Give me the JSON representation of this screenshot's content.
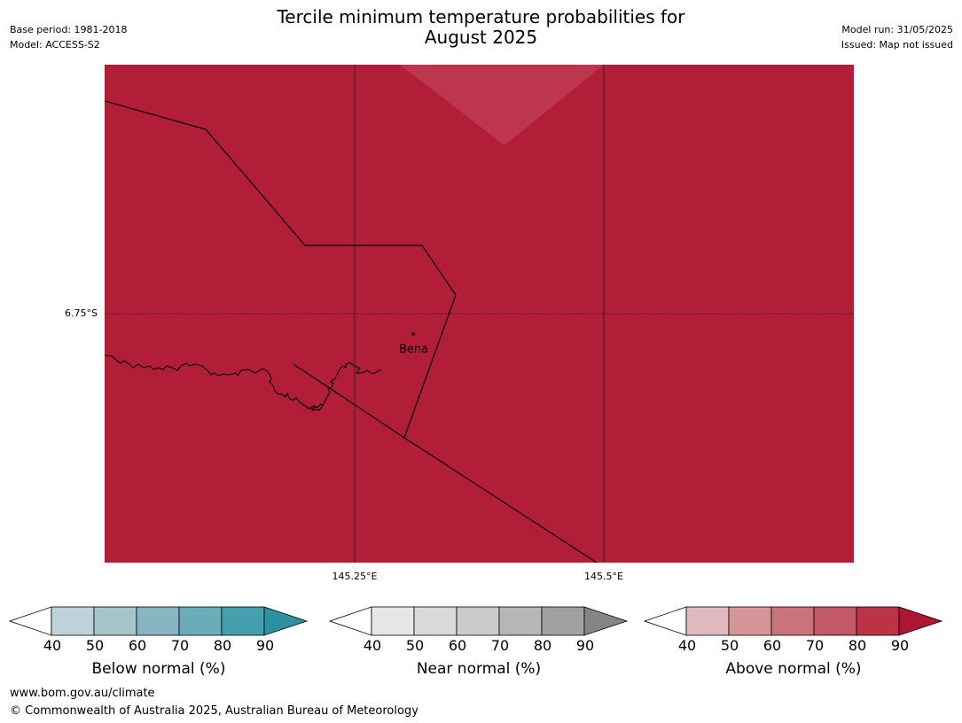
{
  "title_line1": "Tercile minimum temperature probabilities for",
  "title_line2": "August 2025",
  "base_period": "Base period: 1981-2018",
  "model": "Model: ACCESS-S2",
  "model_run": "Model run: 31/05/2025",
  "issued": "Issued: Map not issued",
  "map": {
    "lat_label": "6.75°S",
    "lon_labels": [
      "145.25°E",
      "145.5°E"
    ],
    "place": "Bena",
    "fill_color": "#b21e38",
    "light_patch_color": "#bd364d"
  },
  "legends": [
    {
      "label": "Below normal (%)",
      "ticks": [
        "40",
        "50",
        "60",
        "70",
        "80",
        "90"
      ],
      "colors": [
        "#ffffff",
        "#bed3d9",
        "#a6c4ca",
        "#89b5c1",
        "#6aacba",
        "#44a0ae",
        "#2b919f"
      ]
    },
    {
      "label": "Near normal (%)",
      "ticks": [
        "40",
        "50",
        "60",
        "70",
        "80",
        "90"
      ],
      "colors": [
        "#ffffff",
        "#e6e6e6",
        "#d9d9d9",
        "#cbcbcb",
        "#b6b6b6",
        "#a1a1a1",
        "#858585"
      ]
    },
    {
      "label": "Above normal (%)",
      "ticks": [
        "40",
        "50",
        "60",
        "70",
        "80",
        "90"
      ],
      "colors": [
        "#ffffff",
        "#e1b8bd",
        "#d59599",
        "#ca737b",
        "#c35866",
        "#bc3348",
        "#ad1733"
      ]
    }
  ],
  "footer_line1": "www.bom.gov.au/climate",
  "footer_line2": "© Commonwealth of Australia 2025, Australian Bureau of Meteorology"
}
